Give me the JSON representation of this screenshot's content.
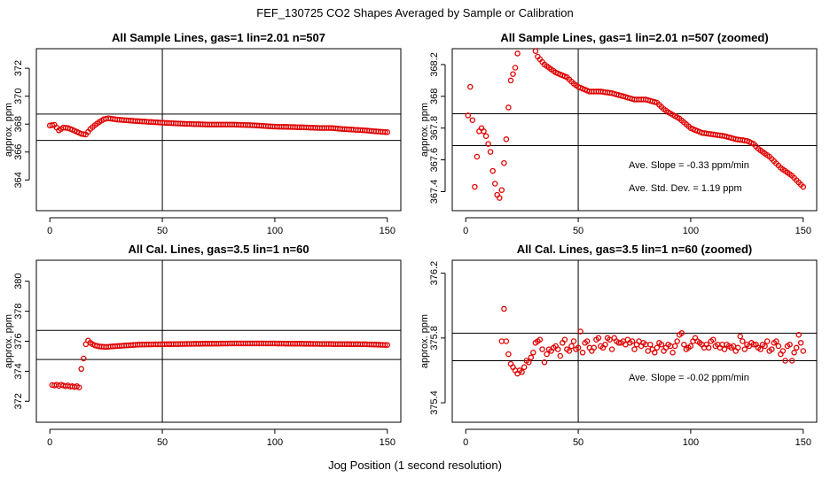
{
  "figure": {
    "title": "FEF_130725  CO2 Shapes Averaged by Sample or Calibration",
    "xlabel": "Jog Position (1 second resolution)",
    "point_color": "#e00000",
    "line_color": "#000000"
  },
  "chart_data": [
    {
      "id": "sample-full",
      "type": "scatter",
      "title": "All Sample Lines, gas=1 lin=2.01 n=507",
      "xlabel": "",
      "ylabel": "approx. ppm",
      "xlim": [
        -6,
        156
      ],
      "ylim": [
        361.8,
        373.4
      ],
      "xticks": [
        0,
        50,
        100,
        150
      ],
      "yticks": [
        364,
        366,
        368,
        370,
        372
      ],
      "hlines": [
        366.83,
        368.72
      ],
      "vline": 50,
      "annotations": [],
      "series": [
        {
          "knots": [
            [
              0,
              367.9
            ],
            [
              2,
              367.95
            ],
            [
              4,
              367.55
            ],
            [
              6,
              367.75
            ],
            [
              8,
              367.72
            ],
            [
              10,
              367.6
            ],
            [
              12,
              367.45
            ],
            [
              14,
              367.3
            ],
            [
              16,
              367.25
            ],
            [
              18,
              367.65
            ],
            [
              20,
              367.92
            ],
            [
              22,
              368.15
            ],
            [
              24,
              368.35
            ],
            [
              26,
              368.42
            ],
            [
              30,
              368.32
            ],
            [
              40,
              368.2
            ],
            [
              50,
              368.1
            ],
            [
              60,
              368.02
            ],
            [
              70,
              367.97
            ],
            [
              80,
              367.97
            ],
            [
              90,
              367.92
            ],
            [
              100,
              367.82
            ],
            [
              110,
              367.78
            ],
            [
              120,
              367.72
            ],
            [
              125,
              367.72
            ],
            [
              130,
              367.65
            ],
            [
              140,
              367.55
            ],
            [
              145,
              367.48
            ],
            [
              150,
              367.42
            ]
          ]
        }
      ]
    },
    {
      "id": "sample-zoom",
      "type": "scatter",
      "title": "All Sample Lines, gas=1 lin=2.01 n=507 (zoomed)",
      "xlabel": "",
      "ylabel": "approx. ppm",
      "xlim": [
        -6,
        156
      ],
      "ylim": [
        367.28,
        368.3
      ],
      "xticks": [
        0,
        50,
        100,
        150
      ],
      "yticks": [
        367.4,
        367.6,
        367.8,
        368.0,
        368.2
      ],
      "hlines": [
        367.89,
        367.69
      ],
      "vline": 50,
      "annotations": [
        "Ave. Slope =  -0.33  ppm/min",
        "Ave. Std. Dev. =  1.19  ppm"
      ],
      "series": [
        {
          "points": [
            [
              1,
              367.88
            ],
            [
              2,
              368.06
            ],
            [
              3,
              367.85
            ],
            [
              4,
              367.43
            ],
            [
              5,
              367.62
            ],
            [
              6,
              367.78
            ],
            [
              7,
              367.8
            ],
            [
              8,
              367.78
            ],
            [
              9,
              367.75
            ],
            [
              10,
              367.7
            ],
            [
              11,
              367.65
            ],
            [
              12,
              367.53
            ],
            [
              13,
              367.45
            ],
            [
              14,
              367.38
            ],
            [
              15,
              367.36
            ],
            [
              16,
              367.41
            ],
            [
              17,
              367.58
            ],
            [
              18,
              367.73
            ],
            [
              19,
              367.93
            ],
            [
              20,
              368.1
            ],
            [
              21,
              368.14
            ],
            [
              22,
              368.18
            ],
            [
              23,
              368.27
            ]
          ],
          "knots": [
            [
              30,
              368.32
            ],
            [
              32,
              368.25
            ],
            [
              35,
              368.2
            ],
            [
              40,
              368.15
            ],
            [
              45,
              368.12
            ],
            [
              48,
              368.08
            ],
            [
              50,
              368.06
            ],
            [
              55,
              368.03
            ],
            [
              60,
              368.03
            ],
            [
              65,
              368.02
            ],
            [
              70,
              368.0
            ],
            [
              75,
              367.98
            ],
            [
              80,
              367.98
            ],
            [
              85,
              367.96
            ],
            [
              88,
              367.92
            ],
            [
              90,
              367.9
            ],
            [
              95,
              367.86
            ],
            [
              100,
              367.8
            ],
            [
              105,
              367.77
            ],
            [
              110,
              367.76
            ],
            [
              115,
              367.75
            ],
            [
              120,
              367.73
            ],
            [
              125,
              367.72
            ],
            [
              128,
              367.7
            ],
            [
              130,
              367.67
            ],
            [
              135,
              367.62
            ],
            [
              140,
              367.55
            ],
            [
              145,
              367.5
            ],
            [
              150,
              367.43
            ]
          ]
        }
      ]
    },
    {
      "id": "cal-full",
      "type": "scatter",
      "title": "All Cal. Lines, gas=3.5 lin=1 n=60",
      "xlabel": "",
      "ylabel": "approx. ppm",
      "xlim": [
        -6,
        156
      ],
      "ylim": [
        370.6,
        381.4
      ],
      "xticks": [
        0,
        50,
        100,
        150
      ],
      "yticks": [
        372,
        374,
        376,
        378,
        380
      ],
      "hlines": [
        376.72,
        374.78
      ],
      "vline": 50,
      "annotations": [],
      "series": [
        {
          "points": [
            [
              1,
              373.08
            ],
            [
              2,
              373.05
            ],
            [
              3,
              373.1
            ],
            [
              4,
              373.02
            ],
            [
              5,
              373.1
            ],
            [
              6,
              373.05
            ],
            [
              7,
              373.0
            ],
            [
              8,
              373.05
            ],
            [
              9,
              372.98
            ],
            [
              10,
              373.0
            ],
            [
              11,
              372.95
            ],
            [
              12,
              373.0
            ],
            [
              13,
              372.92
            ],
            [
              14,
              374.15
            ],
            [
              15,
              374.85
            ],
            [
              16,
              375.8
            ],
            [
              17,
              376.05
            ],
            [
              18,
              375.9
            ],
            [
              19,
              375.8
            ]
          ],
          "knots": [
            [
              20,
              375.72
            ],
            [
              22,
              375.65
            ],
            [
              25,
              375.62
            ],
            [
              30,
              375.68
            ],
            [
              40,
              375.78
            ],
            [
              50,
              375.8
            ],
            [
              60,
              375.82
            ],
            [
              80,
              375.85
            ],
            [
              100,
              375.85
            ],
            [
              120,
              375.82
            ],
            [
              140,
              375.8
            ],
            [
              150,
              375.75
            ]
          ]
        }
      ]
    },
    {
      "id": "cal-zoom",
      "type": "scatter",
      "title": "All Cal. Lines, gas=3.5 lin=1 n=60 (zoomed)",
      "xlabel": "",
      "ylabel": "approx. ppm",
      "xlim": [
        -6,
        156
      ],
      "ylim": [
        375.28,
        376.28
      ],
      "xticks": [
        0,
        50,
        100,
        150
      ],
      "yticks": [
        375.4,
        375.8,
        376.2
      ],
      "hlines": [
        375.83,
        375.66
      ],
      "vline": 50,
      "annotations": [
        "Ave. Slope =  -0.02  ppm/min"
      ],
      "series": [
        {
          "points": [
            [
              16,
              375.78
            ],
            [
              17,
              375.98
            ],
            [
              18,
              375.78
            ],
            [
              19,
              375.7
            ],
            [
              20,
              375.64
            ],
            [
              21,
              375.62
            ],
            [
              22,
              375.6
            ],
            [
              23,
              375.58
            ],
            [
              24,
              375.6
            ],
            [
              25,
              375.59
            ],
            [
              26,
              375.62
            ],
            [
              27,
              375.66
            ],
            [
              28,
              375.65
            ],
            [
              29,
              375.68
            ],
            [
              30,
              375.71
            ],
            [
              31,
              375.77
            ],
            [
              32,
              375.78
            ],
            [
              33,
              375.79
            ],
            [
              34,
              375.73
            ],
            [
              35,
              375.65
            ],
            [
              36,
              375.7
            ],
            [
              37,
              375.73
            ],
            [
              38,
              375.72
            ],
            [
              39,
              375.74
            ],
            [
              40,
              375.75
            ],
            [
              41,
              375.73
            ],
            [
              42,
              375.69
            ],
            [
              43,
              375.77
            ],
            [
              44,
              375.79
            ],
            [
              45,
              375.73
            ],
            [
              46,
              375.72
            ],
            [
              47,
              375.75
            ],
            [
              48,
              375.78
            ],
            [
              49,
              375.73
            ],
            [
              50,
              375.74
            ],
            [
              51,
              375.84
            ],
            [
              52,
              375.71
            ],
            [
              53,
              375.77
            ],
            [
              54,
              375.78
            ],
            [
              55,
              375.74
            ],
            [
              56,
              375.72
            ],
            [
              57,
              375.74
            ],
            [
              58,
              375.79
            ],
            [
              59,
              375.8
            ],
            [
              60,
              375.75
            ],
            [
              61,
              375.74
            ],
            [
              62,
              375.76
            ],
            [
              63,
              375.8
            ],
            [
              64,
              375.79
            ],
            [
              65,
              375.73
            ],
            [
              66,
              375.8
            ],
            [
              67,
              375.78
            ],
            [
              68,
              375.77
            ],
            [
              69,
              375.77
            ],
            [
              70,
              375.78
            ],
            [
              71,
              375.76
            ],
            [
              72,
              375.79
            ],
            [
              73,
              375.77
            ],
            [
              74,
              375.78
            ],
            [
              75,
              375.73
            ],
            [
              76,
              375.76
            ],
            [
              77,
              375.78
            ],
            [
              78,
              375.75
            ],
            [
              79,
              375.77
            ],
            [
              80,
              375.76
            ],
            [
              81,
              375.72
            ],
            [
              82,
              375.76
            ],
            [
              83,
              375.73
            ],
            [
              84,
              375.71
            ],
            [
              85,
              375.74
            ],
            [
              86,
              375.77
            ],
            [
              87,
              375.76
            ],
            [
              88,
              375.72
            ],
            [
              89,
              375.74
            ],
            [
              90,
              375.76
            ],
            [
              91,
              375.75
            ],
            [
              92,
              375.71
            ],
            [
              93,
              375.75
            ],
            [
              94,
              375.78
            ],
            [
              95,
              375.82
            ],
            [
              96,
              375.83
            ],
            [
              97,
              375.76
            ],
            [
              98,
              375.73
            ],
            [
              99,
              375.74
            ],
            [
              100,
              375.75
            ],
            [
              101,
              375.78
            ],
            [
              102,
              375.8
            ],
            [
              103,
              375.78
            ],
            [
              104,
              375.77
            ],
            [
              105,
              375.76
            ],
            [
              106,
              375.74
            ],
            [
              107,
              375.76
            ],
            [
              108,
              375.74
            ],
            [
              109,
              375.78
            ],
            [
              110,
              375.79
            ],
            [
              111,
              375.75
            ],
            [
              112,
              375.76
            ],
            [
              113,
              375.74
            ],
            [
              114,
              375.76
            ],
            [
              115,
              375.73
            ],
            [
              116,
              375.76
            ],
            [
              117,
              375.75
            ],
            [
              118,
              375.74
            ],
            [
              119,
              375.75
            ],
            [
              120,
              375.72
            ],
            [
              121,
              375.74
            ],
            [
              122,
              375.81
            ],
            [
              123,
              375.78
            ],
            [
              124,
              375.73
            ],
            [
              125,
              375.76
            ],
            [
              126,
              375.75
            ],
            [
              127,
              375.77
            ],
            [
              128,
              375.76
            ],
            [
              129,
              375.76
            ],
            [
              130,
              375.74
            ],
            [
              131,
              375.73
            ],
            [
              132,
              375.76
            ],
            [
              133,
              375.75
            ],
            [
              134,
              375.78
            ],
            [
              135,
              375.72
            ],
            [
              136,
              375.73
            ],
            [
              137,
              375.77
            ],
            [
              138,
              375.78
            ],
            [
              139,
              375.75
            ],
            [
              140,
              375.7
            ],
            [
              141,
              375.72
            ],
            [
              142,
              375.66
            ],
            [
              143,
              375.75
            ],
            [
              144,
              375.76
            ],
            [
              145,
              375.66
            ],
            [
              146,
              375.71
            ],
            [
              147,
              375.74
            ],
            [
              148,
              375.82
            ],
            [
              149,
              375.77
            ],
            [
              150,
              375.72
            ]
          ]
        }
      ]
    }
  ]
}
